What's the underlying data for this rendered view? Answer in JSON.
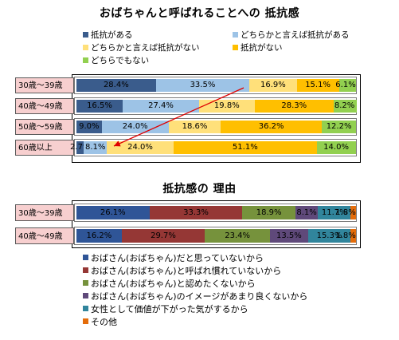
{
  "chart_data": [
    {
      "type": "bar",
      "stacked": true,
      "orientation": "horizontal",
      "title": "おばちゃんと呼ばれることへの 抵抗感",
      "categories": [
        "30歳～39歳",
        "40歳～49歳",
        "50歳～59歳",
        "60歳以上"
      ],
      "series": [
        {
          "name": "抵抗がある",
          "color": "#3a5c8c",
          "values": [
            28.4,
            16.5,
            9.0,
            2.7
          ]
        },
        {
          "name": "どちらかと言えば抵抗がある",
          "color": "#9dc3e6",
          "values": [
            33.5,
            27.4,
            24.0,
            8.1
          ]
        },
        {
          "name": "どちらかと言えば抵抗がない",
          "color": "#ffe07a",
          "values": [
            16.9,
            19.8,
            18.6,
            24.0
          ]
        },
        {
          "name": "抵抗がない",
          "color": "#ffbf00",
          "values": [
            15.1,
            28.3,
            36.2,
            51.1
          ]
        },
        {
          "name": "どちらでもない",
          "color": "#92d050",
          "values": [
            6.1,
            8.2,
            12.2,
            14.0
          ]
        }
      ],
      "data_labels": [
        [
          "28.4%",
          "33.5%",
          "16.9%",
          "15.1%",
          "6.1%"
        ],
        [
          "16.5%",
          "27.4%",
          "19.8%",
          "28.3%",
          "8.2%"
        ],
        [
          "9.0%",
          "24.0%",
          "18.6%",
          "36.2%",
          "12.2%"
        ],
        [
          "2.7%",
          "8.1%",
          "24.0%",
          "51.1%",
          "14.0%"
        ]
      ],
      "legend": "top",
      "grid": false,
      "xlim": [
        0,
        100
      ]
    },
    {
      "type": "bar",
      "stacked": true,
      "orientation": "horizontal",
      "title": "抵抗感の 理由",
      "categories": [
        "30歳～39歳",
        "40歳～49歳"
      ],
      "series": [
        {
          "name": "おばさん(おばちゃん)だと思っていないから",
          "color": "#2f5597",
          "values": [
            26.1,
            16.2
          ]
        },
        {
          "name": "おばさん(おばちゃん)と呼ばれ慣れていないから",
          "color": "#953735",
          "values": [
            33.3,
            29.7
          ]
        },
        {
          "name": "おばさん(おばちゃん)と認めたくないから",
          "color": "#76923c",
          "values": [
            18.9,
            23.4
          ]
        },
        {
          "name": "おばさん(おばちゃん)のイメージがあまり良くないから",
          "color": "#5f497a",
          "values": [
            8.1,
            13.5
          ]
        },
        {
          "name": "女性として価値が下がった気がするから",
          "color": "#31859c",
          "values": [
            11.7,
            15.3
          ]
        },
        {
          "name": "その他",
          "color": "#e46c0a",
          "values": [
            1.8,
            1.8
          ]
        }
      ],
      "data_labels": [
        [
          "26.1%",
          "33.3%",
          "18.9%",
          "8.1%",
          "11.7%",
          "1.8%"
        ],
        [
          "16.2%",
          "29.7%",
          "23.4%",
          "13.5%",
          "15.3%",
          "1.8%"
        ]
      ],
      "legend": "bottom",
      "grid": false,
      "xlim": [
        0,
        100
      ]
    }
  ]
}
